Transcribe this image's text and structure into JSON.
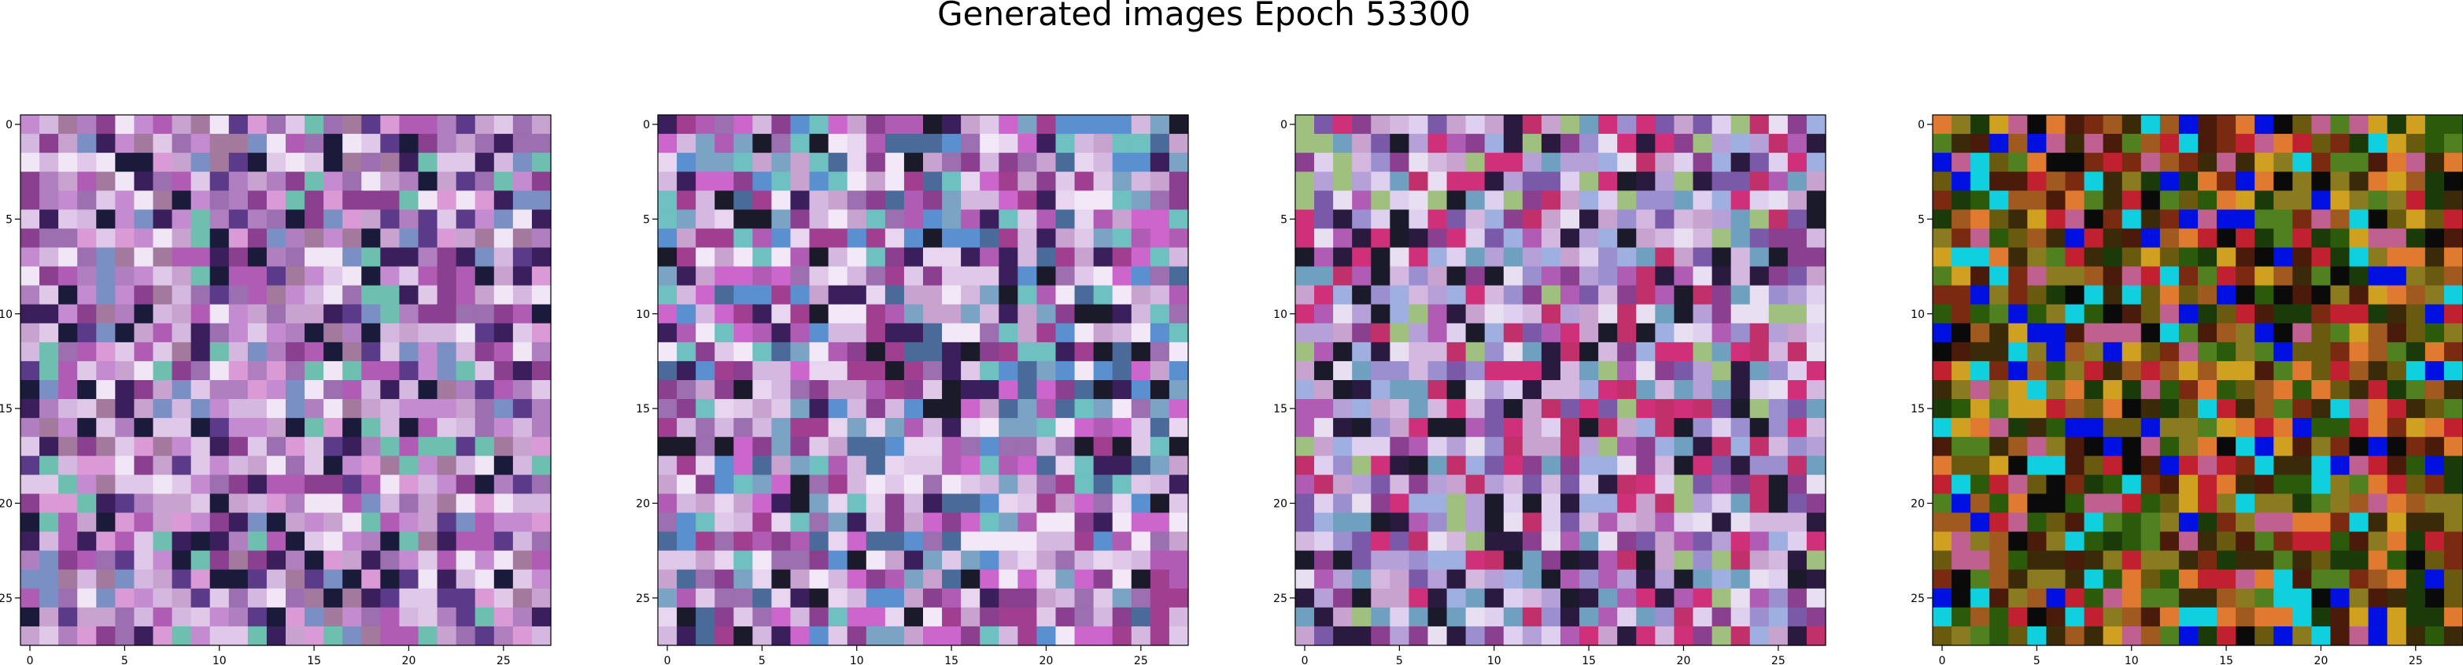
{
  "figure": {
    "title": "Generated images Epoch 53300"
  },
  "chart_data": [
    {
      "type": "heatmap",
      "title": "",
      "grid_size": 28,
      "xlim": [
        -0.5,
        27.5
      ],
      "ylim": [
        27.5,
        -0.5
      ],
      "x_ticks": [
        "0",
        "5",
        "10",
        "15",
        "20",
        "25"
      ],
      "y_ticks": [
        "0",
        "5",
        "10",
        "15",
        "20",
        "25"
      ],
      "palette": [
        "#c9a3cf",
        "#b07fc0",
        "#d4b8e0",
        "#9b6fb0",
        "#7a8fc4",
        "#e0c9e8",
        "#a37a9e",
        "#c48bd0",
        "#6fbfb0",
        "#8a3f8f",
        "#b05cb5",
        "#1a1a3a",
        "#3a1f5c",
        "#5b3a8a",
        "#d99ad6",
        "#f0e6f5"
      ],
      "note_pixels": "pseudo-random noise image, 28x28 RGB"
    },
    {
      "type": "heatmap",
      "title": "",
      "grid_size": 28,
      "xlim": [
        -0.5,
        27.5
      ],
      "ylim": [
        27.5,
        -0.5
      ],
      "x_ticks": [
        "0",
        "5",
        "10",
        "15",
        "20",
        "25"
      ],
      "y_ticks": [
        "0",
        "5",
        "10",
        "15",
        "20",
        "25"
      ],
      "palette": [
        "#c9a3cf",
        "#d4b8e0",
        "#e8d6f0",
        "#9b6fb0",
        "#7aa3c4",
        "#cc66cc",
        "#a03f8f",
        "#1a1a2a",
        "#3a1f5c",
        "#6fc0c0",
        "#b05cb5",
        "#5a8fd0",
        "#e0c9e8",
        "#8a3f8f",
        "#f2e8f8",
        "#4a6a9a"
      ],
      "note_pixels": "pseudo-random noise image, 28x28 RGB"
    },
    {
      "type": "heatmap",
      "title": "",
      "grid_size": 28,
      "xlim": [
        -0.5,
        27.5
      ],
      "ylim": [
        27.5,
        -0.5
      ],
      "x_ticks": [
        "0",
        "5",
        "10",
        "15",
        "20",
        "25"
      ],
      "y_ticks": [
        "0",
        "5",
        "10",
        "15",
        "20",
        "25"
      ],
      "palette": [
        "#b5a0d8",
        "#c9a3cf",
        "#9b8fd0",
        "#d4b8e0",
        "#e0d0f0",
        "#8a3f8f",
        "#c0306a",
        "#1a1a2a",
        "#6fa0c0",
        "#a0c080",
        "#b05cb5",
        "#7a5aa8",
        "#e8e0f0",
        "#d0307a",
        "#2a1a40",
        "#9fb0e0"
      ],
      "note_pixels": "pseudo-random noise image, 28x28 RGB"
    },
    {
      "type": "heatmap",
      "title": "",
      "grid_size": 28,
      "xlim": [
        -0.5,
        27.5
      ],
      "ylim": [
        27.5,
        -0.5
      ],
      "x_ticks": [
        "0",
        "5",
        "10",
        "15",
        "20",
        "25"
      ],
      "y_ticks": [
        "0",
        "5",
        "10",
        "15",
        "20",
        "25"
      ],
      "palette": [
        "#1a3a0a",
        "#3a2a0a",
        "#6a5a10",
        "#a05a20",
        "#c02030",
        "#0a0a0a",
        "#2a5a0a",
        "#d0a020",
        "#0010e0",
        "#7a2a10",
        "#e07a30",
        "#4a1a0a",
        "#508020",
        "#c06090",
        "#10d0e0",
        "#8a7a20"
      ],
      "note_pixels": "pseudo-random noise image, 28x28 RGB"
    }
  ]
}
